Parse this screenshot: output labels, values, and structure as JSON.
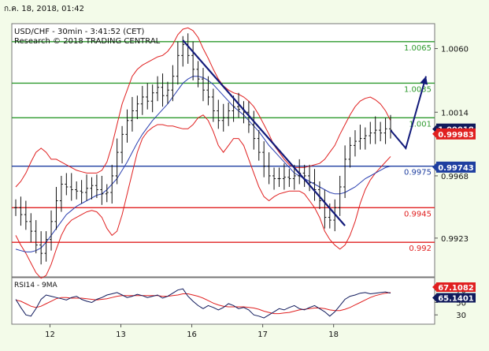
{
  "header": {
    "datetime": "ก.ค. 18, 2018, 01:42"
  },
  "chart_data": {
    "type": "candlestick",
    "instrument_line": "USD/CHF - 30min - 3:41:52 (CET)",
    "research_line": "Research © 2018 TRADING CENTRAL",
    "ylim": [
      0.9895,
      1.0078
    ],
    "y_ticks": [
      "1.0060",
      "1.0014",
      "0.9968",
      "0.9923"
    ],
    "y_tick_values": [
      1.006,
      1.0014,
      0.9968,
      0.9923
    ],
    "x_ticks": [
      "12",
      "13",
      "16",
      "17",
      "18"
    ],
    "x_tick_index": [
      8,
      22,
      36,
      50,
      64
    ],
    "levels": [
      {
        "label": "1.0065",
        "value": 1.0065,
        "color": "#2e9a2e"
      },
      {
        "label": "1.0035",
        "value": 1.0035,
        "color": "#2e9a2e"
      },
      {
        "label": "1.001",
        "value": 1.001,
        "color": "#2e9a2e"
      },
      {
        "label": "0.9975",
        "value": 0.9975,
        "color": "#1f3fa0"
      },
      {
        "label": "0.9945",
        "value": 0.9945,
        "color": "#e02020"
      },
      {
        "label": "0.992",
        "value": 0.992,
        "color": "#e02020"
      }
    ],
    "price_boxes": [
      {
        "label": "1.00018",
        "value": 1.00018,
        "bg": "#101a5c",
        "fg": "#ffffff"
      },
      {
        "label": "0.99983",
        "value": 0.99983,
        "bg": "#e02020",
        "fg": "#ffffff"
      },
      {
        "label": "0.99743",
        "value": 0.99743,
        "bg": "#1f3fa0",
        "fg": "#ffffff"
      }
    ],
    "closes": [
      0.9945,
      0.994,
      0.9935,
      0.9928,
      0.9918,
      0.9912,
      0.9922,
      0.9935,
      0.995,
      0.9962,
      0.996,
      0.9958,
      0.9957,
      0.9956,
      0.9959,
      0.9961,
      0.9958,
      0.9955,
      0.9956,
      0.9968,
      0.9985,
      0.9998,
      1.0008,
      1.0015,
      1.002,
      1.0025,
      1.0022,
      1.0028,
      1.0032,
      1.0026,
      1.003,
      1.004,
      1.0055,
      1.0063,
      1.0055,
      1.0045,
      1.0038,
      1.003,
      1.0025,
      1.0015,
      1.0008,
      1.001,
      1.0015,
      1.0018,
      1.0016,
      1.0014,
      1.0005,
      0.9995,
      0.9985,
      0.9975,
      0.9968,
      0.9966,
      0.9966,
      0.9967,
      0.9966,
      0.9968,
      0.997,
      0.9968,
      0.9963,
      0.9958,
      0.995,
      0.9938,
      0.9936,
      0.9945,
      0.996,
      0.998,
      0.999,
      0.9993,
      0.9995,
      0.9997,
      0.9999,
      1.0001,
      0.9999,
      1.0002,
      1.0001
    ],
    "bollinger_upper": [
      0.996,
      0.9964,
      0.997,
      0.9978,
      0.9985,
      0.9988,
      0.9985,
      0.998,
      0.998,
      0.9978,
      0.9976,
      0.9974,
      0.9972,
      0.9971,
      0.997,
      0.997,
      0.997,
      0.9972,
      0.9978,
      0.999,
      1.0005,
      1.002,
      1.003,
      1.004,
      1.0045,
      1.0048,
      1.005,
      1.0052,
      1.0054,
      1.0055,
      1.0058,
      1.0063,
      1.007,
      1.0074,
      1.0075,
      1.0073,
      1.0068,
      1.006,
      1.0053,
      1.0045,
      1.0038,
      1.0033,
      1.003,
      1.0028,
      1.0027,
      1.0025,
      1.0022,
      1.0018,
      1.0012,
      1.0005,
      0.9998,
      0.999,
      0.9985,
      0.998,
      0.9976,
      0.9974,
      0.9974,
      0.9974,
      0.9975,
      0.9976,
      0.9977,
      0.998,
      0.9985,
      0.999,
      0.9998,
      1.0005,
      1.0012,
      1.0018,
      1.0022,
      1.0024,
      1.0025,
      1.0023,
      1.002,
      1.0015,
      1.0008
    ],
    "bollinger_lower": [
      0.9925,
      0.9918,
      0.9912,
      0.9905,
      0.9898,
      0.9894,
      0.9896,
      0.9904,
      0.9915,
      0.9925,
      0.9932,
      0.9936,
      0.9938,
      0.994,
      0.9942,
      0.9943,
      0.9942,
      0.9938,
      0.993,
      0.9925,
      0.9928,
      0.994,
      0.9955,
      0.997,
      0.9985,
      0.9995,
      1.0,
      1.0003,
      1.0005,
      1.0005,
      1.0004,
      1.0004,
      1.0003,
      1.0002,
      1.0002,
      1.0005,
      1.001,
      1.0012,
      1.0008,
      1.0,
      0.999,
      0.9985,
      0.999,
      0.9995,
      0.9995,
      0.999,
      0.998,
      0.997,
      0.996,
      0.9953,
      0.995,
      0.9953,
      0.9955,
      0.9956,
      0.9957,
      0.9957,
      0.9957,
      0.9955,
      0.995,
      0.9945,
      0.9938,
      0.9928,
      0.9922,
      0.9918,
      0.9915,
      0.9918,
      0.9925,
      0.9935,
      0.9948,
      0.9958,
      0.9965,
      0.997,
      0.9974,
      0.9978,
      0.9982
    ],
    "moving_average": [
      0.9915,
      0.9914,
      0.9913,
      0.9913,
      0.9914,
      0.9916,
      0.992,
      0.9925,
      0.993,
      0.9935,
      0.994,
      0.9943,
      0.9946,
      0.9948,
      0.995,
      0.9952,
      0.9954,
      0.9955,
      0.9958,
      0.9962,
      0.9966,
      0.9972,
      0.9978,
      0.9985,
      0.9992,
      0.9998,
      1.0003,
      1.0008,
      1.0012,
      1.0016,
      1.002,
      1.0025,
      1.003,
      1.0035,
      1.0038,
      1.004,
      1.004,
      1.0039,
      1.0037,
      1.0034,
      1.003,
      1.0026,
      1.0022,
      1.0018,
      1.0015,
      1.0012,
      1.0008,
      1.0004,
      1.0,
      0.9995,
      0.999,
      0.9986,
      0.9982,
      0.9978,
      0.9974,
      0.997,
      0.9968,
      0.9966,
      0.9964,
      0.9962,
      0.996,
      0.9958,
      0.9956,
      0.9955,
      0.9955,
      0.9956,
      0.9958,
      0.996,
      0.9963,
      0.9966,
      0.9968,
      0.997,
      0.9972,
      0.9974,
      0.9975
    ],
    "trendline": {
      "from": {
        "index": 33,
        "value": 1.0066
      },
      "to": {
        "index": 65,
        "value": 0.9932
      }
    },
    "projection": [
      {
        "index": 74,
        "value": 1.0001
      },
      {
        "index": 77,
        "value": 0.9988
      },
      {
        "index": 81,
        "value": 1.004
      }
    ],
    "rsi": {
      "label": "RSI14 - 9MA",
      "y_ticks": [
        "70",
        "50",
        "30"
      ],
      "y_tick_values": [
        70,
        50,
        30
      ],
      "ylim": [
        15,
        90
      ],
      "value_boxes": [
        {
          "label": "67.1082",
          "value": 67.1082,
          "bg": "#e02020",
          "fg": "#ffffff"
        },
        {
          "label": "65.1401",
          "value": 65.1401,
          "bg": "#101a5c",
          "fg": "#ffffff"
        }
      ],
      "rsi_values": [
        55,
        42,
        30,
        28,
        40,
        55,
        62,
        60,
        58,
        56,
        54,
        58,
        60,
        55,
        52,
        50,
        55,
        58,
        62,
        64,
        66,
        62,
        58,
        60,
        63,
        61,
        58,
        60,
        62,
        57,
        60,
        65,
        70,
        72,
        60,
        52,
        45,
        40,
        45,
        42,
        38,
        42,
        48,
        45,
        40,
        42,
        38,
        30,
        28,
        25,
        30,
        35,
        40,
        38,
        42,
        45,
        40,
        38,
        42,
        45,
        40,
        35,
        28,
        35,
        45,
        55,
        60,
        62,
        65,
        66,
        64,
        65,
        66,
        67,
        65
      ],
      "ma_values": [
        54,
        52,
        48,
        44,
        42,
        44,
        48,
        52,
        56,
        58,
        58,
        57,
        57,
        57,
        56,
        55,
        54,
        55,
        56,
        58,
        60,
        61,
        61,
        61,
        61,
        61,
        61,
        61,
        61,
        60,
        60,
        61,
        62,
        64,
        64,
        62,
        60,
        57,
        53,
        49,
        46,
        44,
        43,
        43,
        43,
        43,
        42,
        41,
        39,
        36,
        34,
        32,
        32,
        33,
        34,
        36,
        38,
        39,
        40,
        41,
        41,
        40,
        38,
        37,
        37,
        39,
        42,
        46,
        50,
        54,
        58,
        61,
        63,
        65,
        66
      ]
    }
  }
}
